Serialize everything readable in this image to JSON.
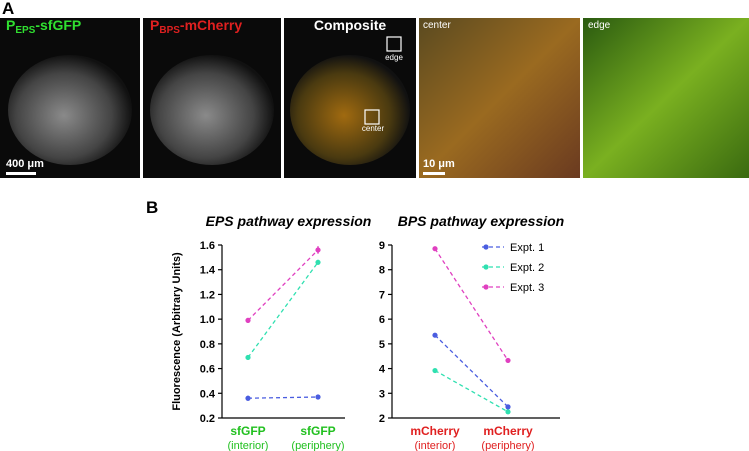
{
  "panel_labels": [
    "A",
    "B"
  ],
  "panel_a": {
    "image_1_label": [
      "P",
      "EPS",
      "-sfGFP"
    ],
    "image_2_label": [
      "P",
      "BPS",
      "-mCherry"
    ],
    "image_3_label": "Composite",
    "box_labels": [
      "edge",
      "center"
    ],
    "zoom_labels": [
      "center",
      "edge"
    ],
    "scale_bars": [
      "400 μm",
      "10 μm"
    ]
  },
  "chart_data": [
    {
      "type": "line",
      "title": "EPS pathway expression",
      "y_label": "Fluorescence (Arbitrary Units)",
      "categories": [
        "sfGFP",
        "sfGFP"
      ],
      "category_sublabels": [
        "(interior)",
        "(periphery)"
      ],
      "category_color": "#22c020",
      "ylim": [
        0.2,
        1.6
      ],
      "yticks": [
        0.2,
        0.4,
        0.6,
        0.8,
        {
          "value": 1,
          "label": "1.0"
        },
        1.2,
        1.4,
        1.6
      ],
      "series": [
        {
          "color": "#4a5de0",
          "values": [
            0.36,
            0.37
          ],
          "errors": [
            0.02,
            0.02
          ]
        },
        {
          "color": "#2fe0b0",
          "values": [
            0.69,
            1.46
          ],
          "errors": [
            0.02,
            0.02
          ]
        },
        {
          "color": "#e040c0",
          "values": [
            0.99,
            1.56
          ],
          "errors": [
            0.02,
            0.03
          ]
        }
      ]
    },
    {
      "type": "line",
      "title": "BPS pathway expression",
      "categories": [
        "mCherry",
        "mCherry"
      ],
      "category_sublabels": [
        "(interior)",
        "(periphery)"
      ],
      "category_color": "#e02020",
      "ylim": [
        2,
        9
      ],
      "yticks": [
        2,
        3,
        4,
        5,
        6,
        7,
        8,
        9
      ],
      "legend": "upper right",
      "series": [
        {
          "name": "Expt. 1",
          "color": "#4a5de0",
          "values": [
            5.35,
            2.45
          ],
          "errors": [
            0.05,
            0.05
          ]
        },
        {
          "name": "Expt. 2",
          "color": "#2fe0b0",
          "values": [
            3.92,
            2.25
          ],
          "errors": [
            0.05,
            0.05
          ]
        },
        {
          "name": "Expt. 3",
          "color": "#e040c0",
          "values": [
            8.85,
            4.33
          ],
          "errors": [
            0.05,
            0.05
          ]
        }
      ]
    }
  ]
}
